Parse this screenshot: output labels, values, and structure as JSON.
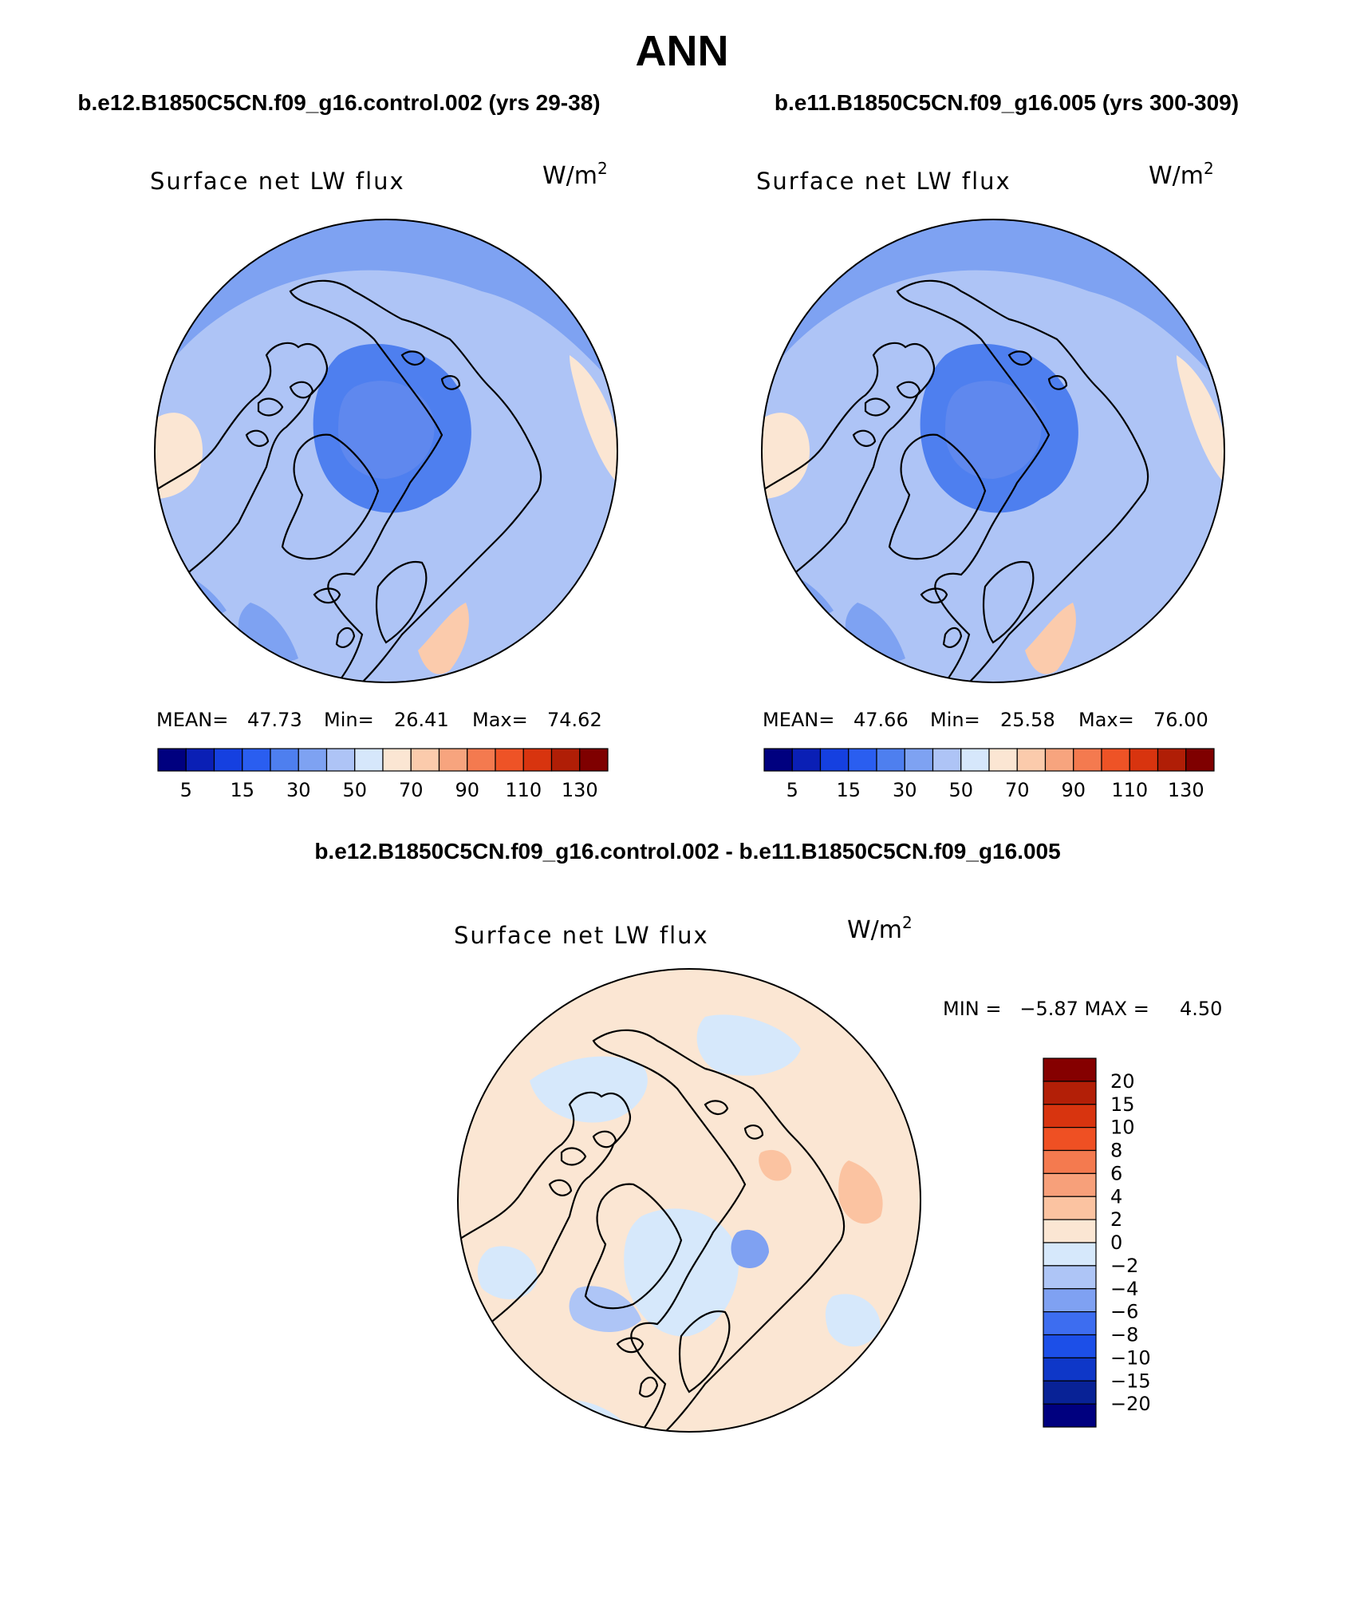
{
  "figure": {
    "title": "ANN",
    "bottom_title": "b.e12.B1850C5CN.f09_g16.control.002 - b.e11.B1850C5CN.f09_g16.005"
  },
  "colors": {
    "abs_scale": [
      "#00007f",
      "#0a1fb5",
      "#1540e0",
      "#2a5ef0",
      "#4e7fef",
      "#7ea2f2",
      "#aec4f6",
      "#d6e7fb",
      "#fbe6d3",
      "#fbcbac",
      "#f7a47e",
      "#f47a4f",
      "#ee5326",
      "#d8340f",
      "#b01e06",
      "#7f0000"
    ],
    "diff_scale": [
      "#00007f",
      "#082296",
      "#0e37c8",
      "#1c4fe8",
      "#3d6df0",
      "#7fa1f2",
      "#aec5f6",
      "#d6e8fb",
      "#fbe6d3",
      "#fbc3a1",
      "#f7a07a",
      "#f47a4f",
      "#ef5023",
      "#d8340f",
      "#b31f07",
      "#850000"
    ],
    "ocean_abs": "#aec4f6",
    "ocean_diff": "#fbe6d3"
  },
  "panels": [
    {
      "title": "b.e12.B1850C5CN.f09_g16.control.002 (yrs 29-38)",
      "variable": "Surface net LW flux",
      "units_base": "W/m",
      "units_sup": "2",
      "stats_mean_label": "MEAN=",
      "stats_mean": "47.73",
      "stats_min_label": "Min=",
      "stats_min": "26.41",
      "stats_max_label": "Max=",
      "stats_max": "74.62",
      "colorbar_labels": [
        "5",
        "15",
        "30",
        "50",
        "70",
        "90",
        "110",
        "130"
      ]
    },
    {
      "title": "b.e11.B1850C5CN.f09_g16.005 (yrs 300-309)",
      "variable": "Surface net LW flux",
      "units_base": "W/m",
      "units_sup": "2",
      "stats_mean_label": "MEAN=",
      "stats_mean": "47.66",
      "stats_min_label": "Min=",
      "stats_min": "25.58",
      "stats_max_label": "Max=",
      "stats_max": "76.00",
      "colorbar_labels": [
        "5",
        "15",
        "30",
        "50",
        "70",
        "90",
        "110",
        "130"
      ]
    }
  ],
  "diff": {
    "variable": "Surface net LW flux",
    "units_base": "W/m",
    "units_sup": "2",
    "minmax": "MIN =   −5.87 MAX =     4.50",
    "colorbar_labels": [
      "20",
      "15",
      "10",
      "8",
      "6",
      "4",
      "2",
      "0",
      "−2",
      "−4",
      "−6",
      "−8",
      "−10",
      "−15",
      "−20"
    ]
  }
}
